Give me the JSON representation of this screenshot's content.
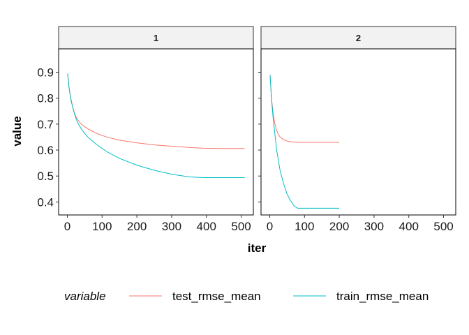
{
  "chart_data": {
    "type": "line",
    "facet_labels": [
      "1",
      "2"
    ],
    "xlabel": "iter",
    "ylabel": "value",
    "xlim": [
      -25,
      535
    ],
    "ylim": [
      0.35,
      0.99
    ],
    "x_ticks": [
      0,
      100,
      200,
      300,
      400,
      500
    ],
    "x_tick_labels": [
      "0",
      "100",
      "200",
      "300",
      "400",
      "500"
    ],
    "y_ticks": [
      0.4,
      0.5,
      0.6,
      0.7,
      0.8,
      0.9
    ],
    "y_tick_labels": [
      "0.4",
      "0.5",
      "0.6",
      "0.7",
      "0.8",
      "0.9"
    ],
    "legend_title": "variable",
    "legend_position": "bottom",
    "grid": false,
    "series_colors": {
      "test_rmse_mean": "#F8766D",
      "train_rmse_mean": "#00BFC4"
    },
    "facets": [
      {
        "facet": "1",
        "series": [
          {
            "name": "test_rmse_mean",
            "x": [
              1,
              5,
              10,
              15,
              20,
              25,
              30,
              40,
              50,
              60,
              80,
              100,
              120,
              150,
              200,
              250,
              300,
              350,
              390,
              450,
              510
            ],
            "y": [
              0.895,
              0.84,
              0.8,
              0.77,
              0.745,
              0.728,
              0.716,
              0.7,
              0.69,
              0.681,
              0.667,
              0.656,
              0.648,
              0.638,
              0.628,
              0.62,
              0.615,
              0.61,
              0.607,
              0.606,
              0.606
            ]
          },
          {
            "name": "train_rmse_mean",
            "x": [
              1,
              5,
              10,
              15,
              20,
              25,
              30,
              40,
              50,
              60,
              80,
              100,
              120,
              150,
              200,
              250,
              300,
              350,
              390,
              450,
              510
            ],
            "y": [
              0.895,
              0.84,
              0.795,
              0.768,
              0.742,
              0.722,
              0.705,
              0.682,
              0.664,
              0.649,
              0.626,
              0.606,
              0.589,
              0.568,
              0.542,
              0.522,
              0.507,
              0.497,
              0.494,
              0.494,
              0.494
            ]
          }
        ]
      },
      {
        "facet": "2",
        "series": [
          {
            "name": "test_rmse_mean",
            "x": [
              1,
              5,
              10,
              15,
              20,
              25,
              30,
              40,
              50,
              60,
              80,
              100,
              150,
              200
            ],
            "y": [
              0.89,
              0.8,
              0.74,
              0.7,
              0.675,
              0.66,
              0.65,
              0.64,
              0.635,
              0.632,
              0.63,
              0.63,
              0.63,
              0.63
            ]
          },
          {
            "name": "train_rmse_mean",
            "x": [
              1,
              5,
              10,
              15,
              20,
              25,
              30,
              40,
              50,
              60,
              70,
              80,
              100,
              150,
              200
            ],
            "y": [
              0.89,
              0.8,
              0.72,
              0.66,
              0.6,
              0.56,
              0.52,
              0.47,
              0.43,
              0.405,
              0.385,
              0.376,
              0.376,
              0.376,
              0.376
            ]
          }
        ]
      }
    ]
  }
}
